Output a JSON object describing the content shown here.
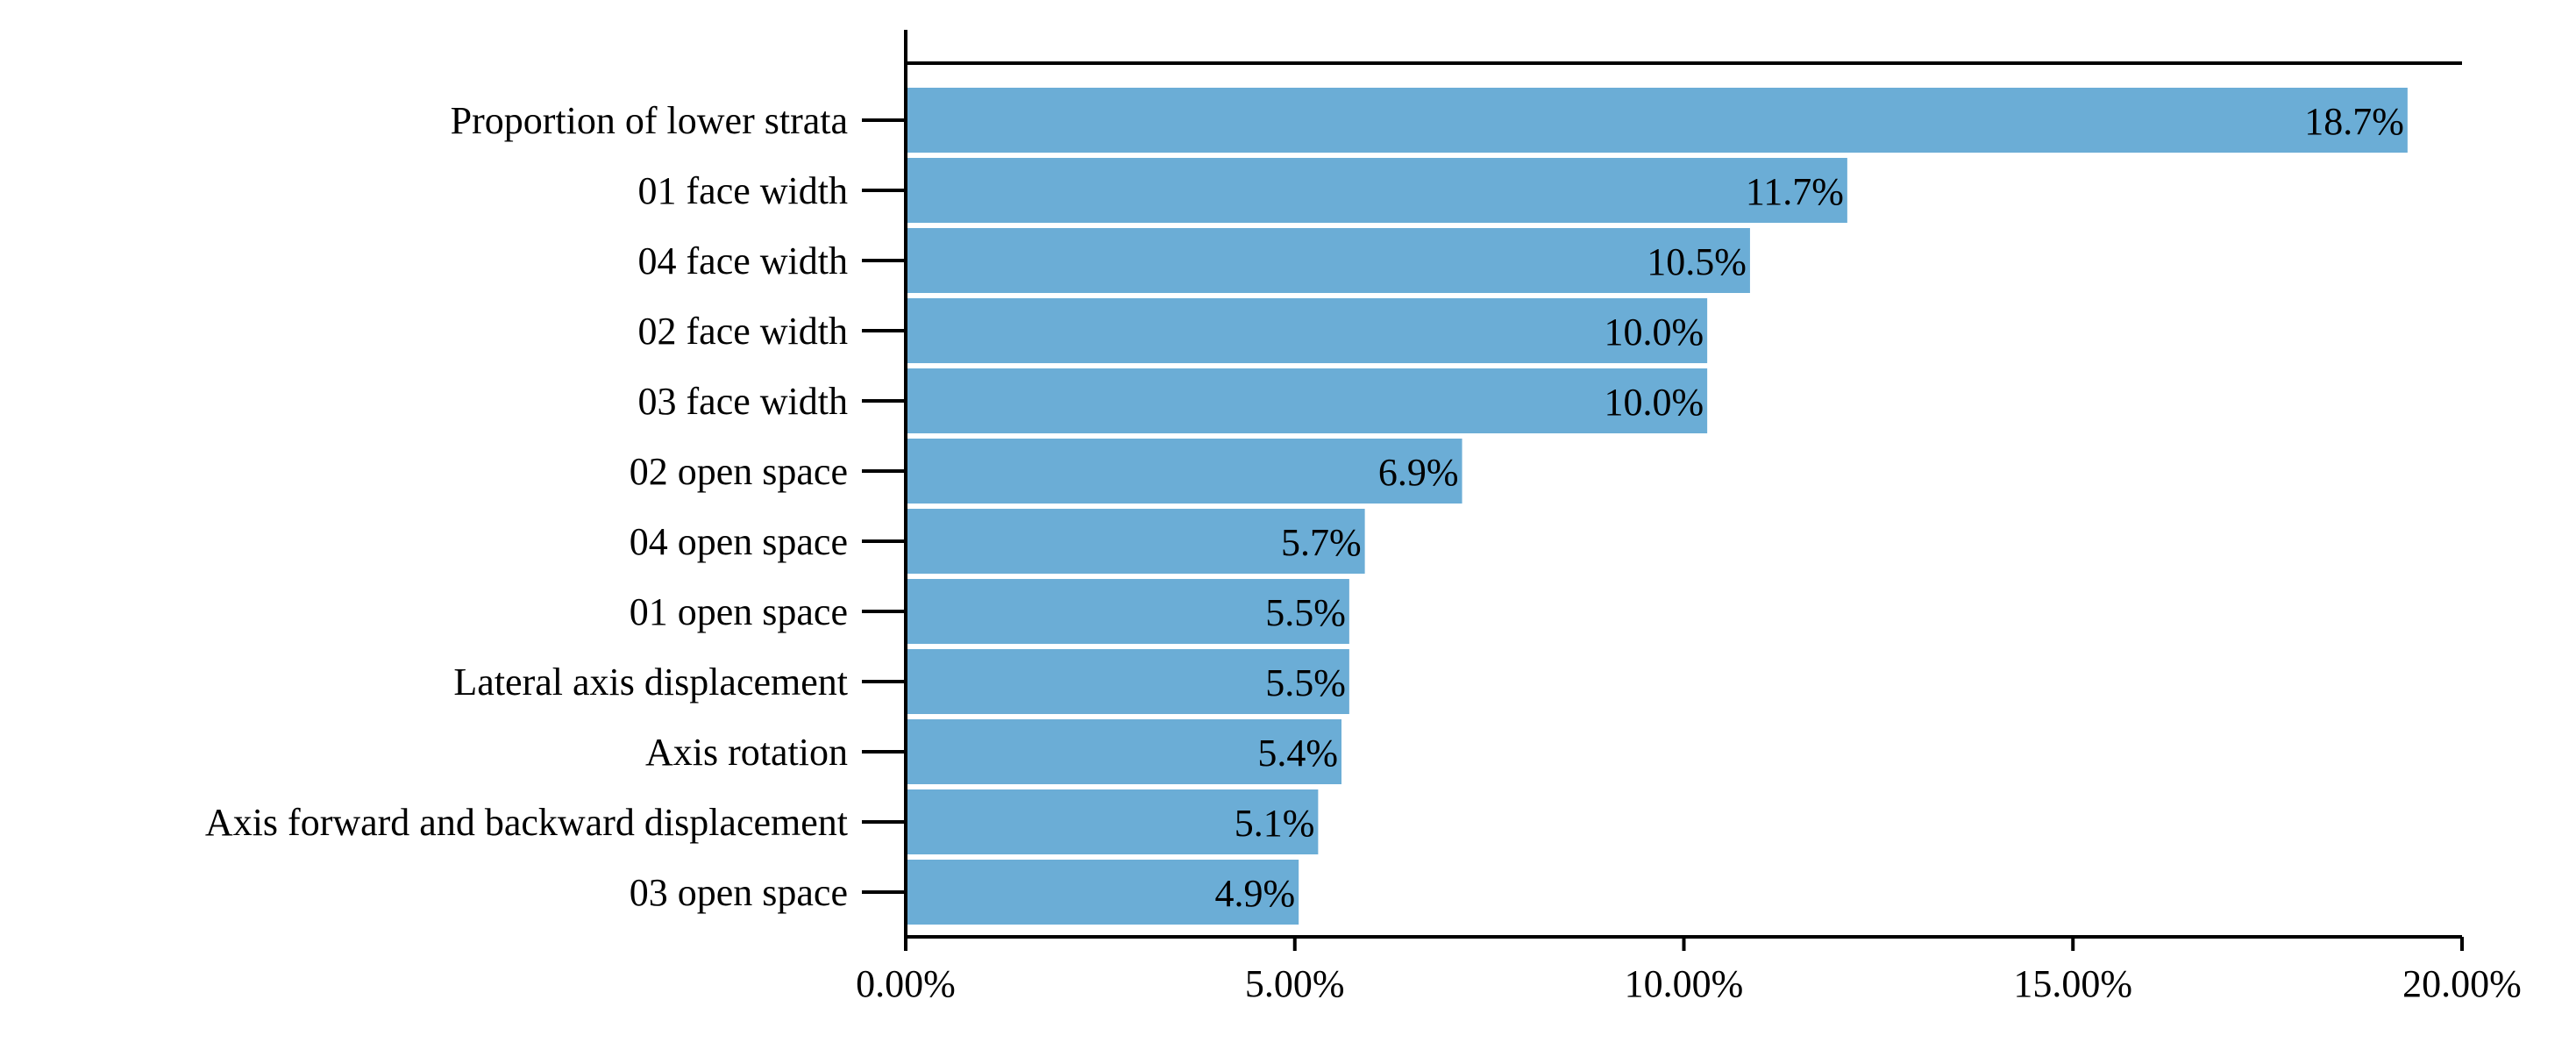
{
  "chart_data": {
    "type": "bar",
    "orientation": "horizontal",
    "categories": [
      "Proportion of lower strata",
      "01 face width",
      "04 face width",
      "02 face width",
      "03 face width",
      "02 open space",
      "04 open space",
      "01 open space",
      "Lateral axis displacement",
      "Axis rotation",
      "Axis forward and backward displacement",
      "03 open space"
    ],
    "values": [
      19.3,
      12.1,
      10.85,
      10.3,
      10.3,
      7.15,
      5.9,
      5.7,
      5.7,
      5.6,
      5.3,
      5.05
    ],
    "data_labels": [
      "18.7%",
      "11.7%",
      "10.5%",
      "10.0%",
      "10.0%",
      "6.9%",
      "5.7%",
      "5.5%",
      "5.5%",
      "5.4%",
      "5.1%",
      "4.9%"
    ],
    "xlim": [
      0,
      20
    ],
    "x_ticks": [
      0,
      5,
      10,
      15,
      20
    ],
    "x_tick_labels": [
      "0.00%",
      "5.00%",
      "10.00%",
      "15.00%",
      "20.00%"
    ],
    "bar_color": "#6badd6",
    "grid": false,
    "legend": "none",
    "title": "",
    "xlabel": "",
    "ylabel": ""
  }
}
